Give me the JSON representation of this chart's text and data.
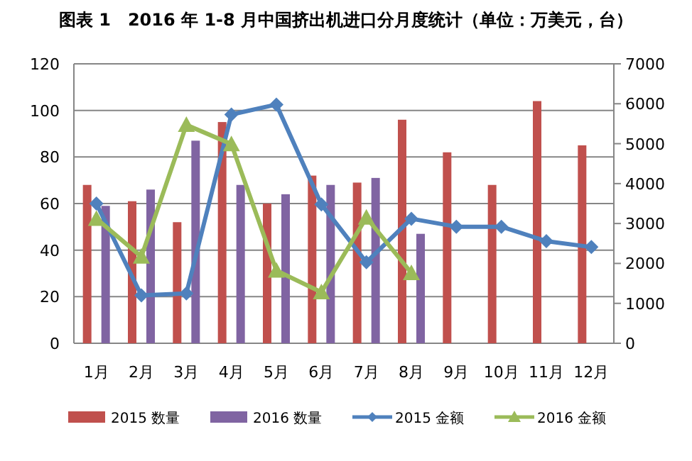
{
  "chart_data": {
    "type": "bar",
    "title": "图表 1　2016 年 1-8 月中国挤出机进口分月度统计（单位：万美元，台）",
    "categories": [
      "1月",
      "2月",
      "3月",
      "4月",
      "5月",
      "6月",
      "7月",
      "8月",
      "9月",
      "10月",
      "11月",
      "12月"
    ],
    "ylim": [
      0,
      120
    ],
    "yticks": [
      0,
      20,
      40,
      60,
      80,
      100,
      120
    ],
    "y2lim": [
      0,
      7000
    ],
    "y2ticks": [
      0,
      1000,
      2000,
      3000,
      4000,
      5000,
      6000,
      7000
    ],
    "grid": "y",
    "legend": "bottom",
    "series": [
      {
        "name": "2015 数量",
        "color": "#c0504d",
        "values": [
          68,
          61,
          52,
          95,
          60,
          72,
          69,
          96,
          82,
          68,
          104,
          85
        ]
      },
      {
        "name": "2016 数量",
        "color": "#8064a2",
        "values": [
          59,
          66,
          87,
          68,
          64,
          68,
          71,
          47,
          null,
          null,
          null,
          null
        ]
      },
      {
        "name": "2015 金额",
        "type": "line",
        "axis": "y2",
        "marker": "diamond",
        "color": "#4f81bd",
        "values": [
          3500,
          1200,
          1250,
          5730,
          5980,
          3480,
          2030,
          3120,
          2920,
          2920,
          2560,
          2410
        ]
      },
      {
        "name": "2016 金额",
        "type": "line",
        "axis": "y2",
        "marker": "triangle",
        "color": "#9bbb59",
        "values": [
          3120,
          2170,
          5470,
          4990,
          1820,
          1280,
          3150,
          1760,
          null,
          null,
          null,
          null
        ]
      }
    ]
  }
}
